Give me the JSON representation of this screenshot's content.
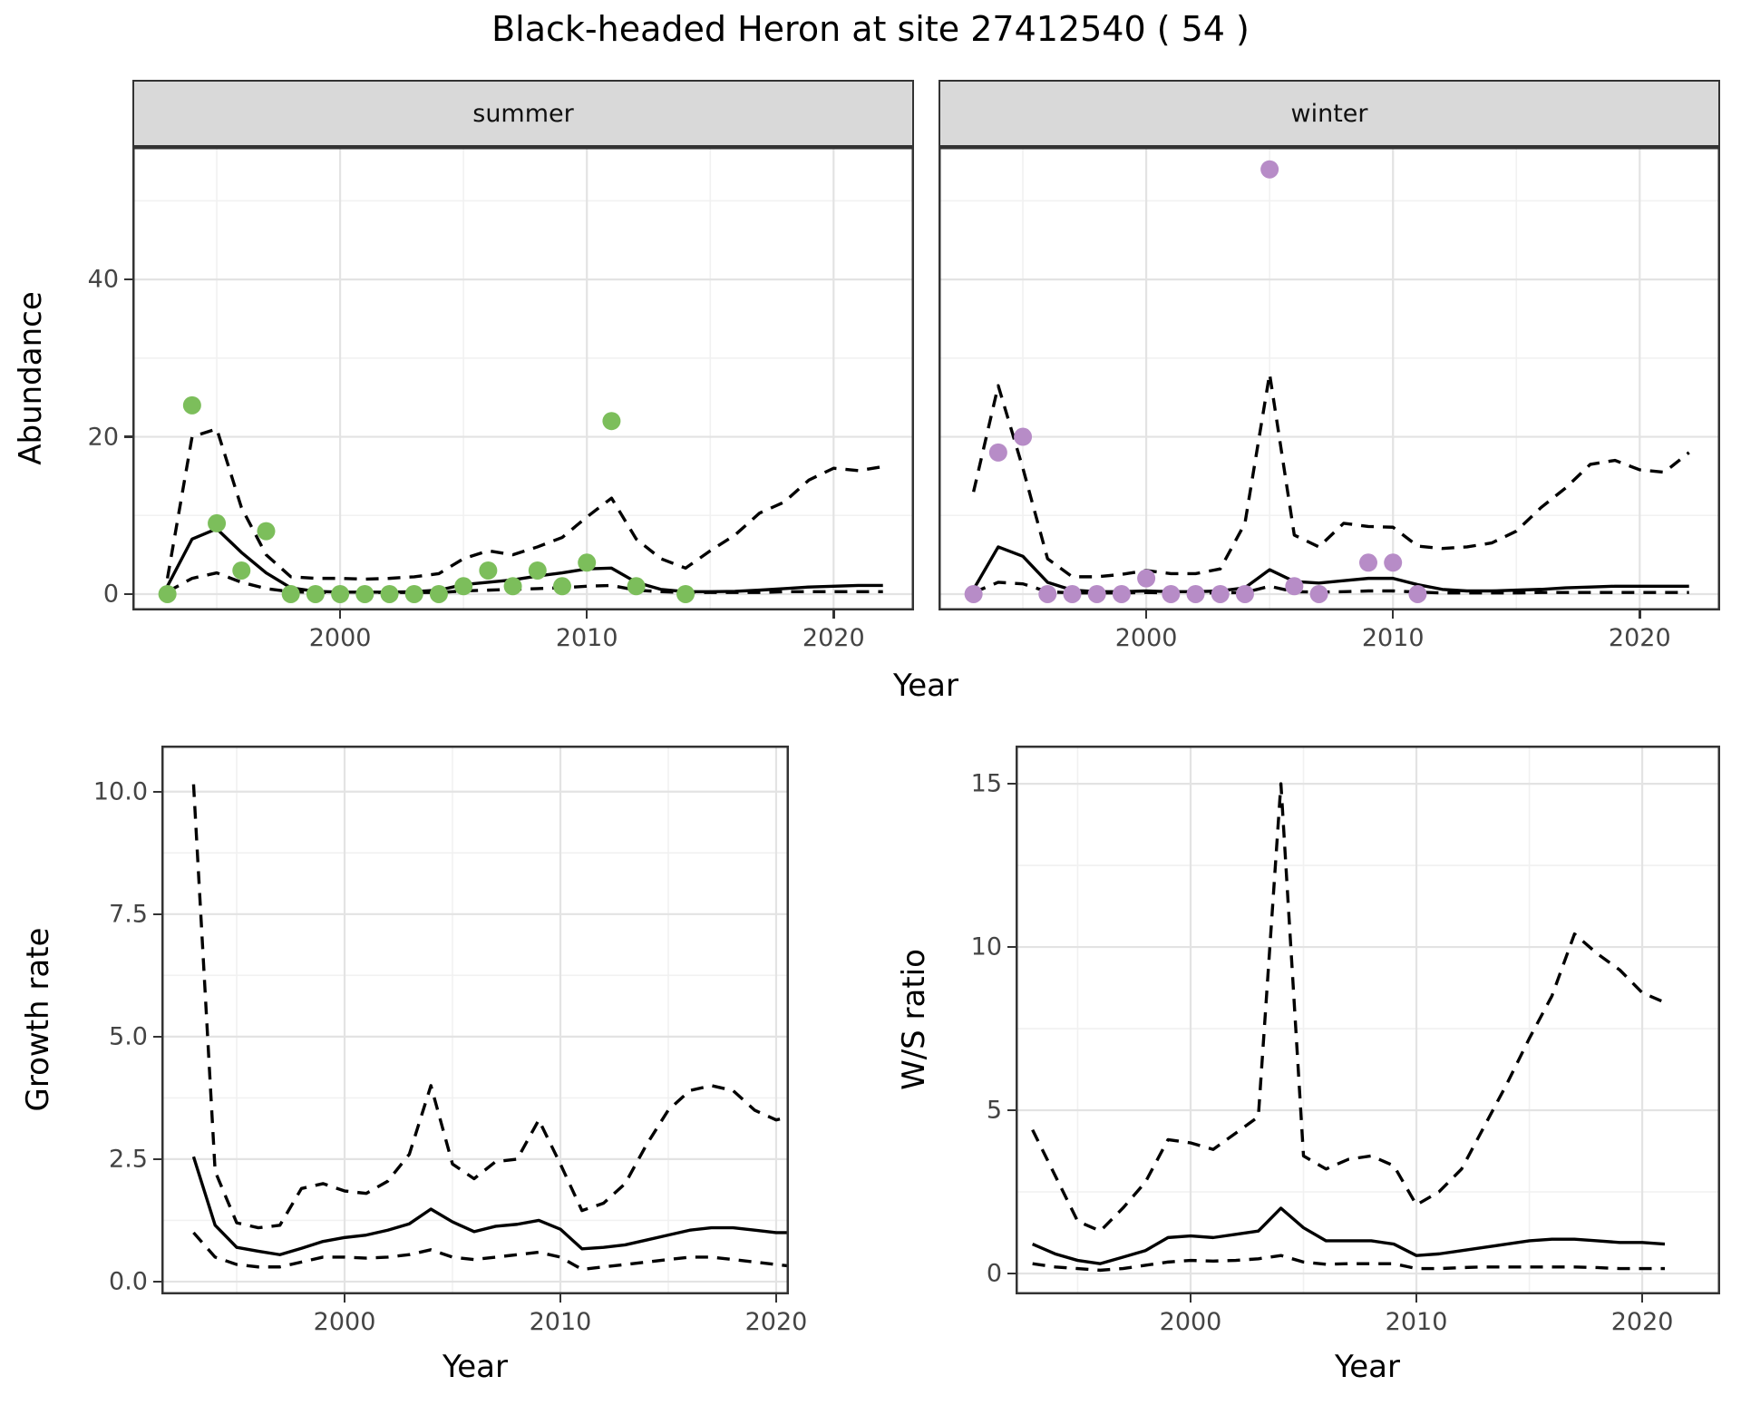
{
  "title": "Black-headed Heron at site 27412540 ( 54 )",
  "facets": [
    {
      "label": "summer"
    },
    {
      "label": "winter"
    }
  ],
  "axis_titles": {
    "top_x": "Year",
    "top_y": "Abundance",
    "bottom_left_x": "Year",
    "bottom_left_y": "Growth rate",
    "bottom_right_x": "Year",
    "bottom_right_y": "W/S ratio"
  },
  "colors": {
    "summer_point": "#7CBE5B",
    "winter_point": "#B78CC7",
    "line": "#000000",
    "grid_major": "#E3E3E3",
    "grid_minor": "#F1F1F1",
    "panel_border": "#333333",
    "strip_fill": "#D9D9D9",
    "tick_text": "#444444"
  },
  "chart_data": [
    {
      "id": "abundance-summer",
      "type": "line",
      "title": "summer",
      "xlabel": "Year",
      "ylabel": "Abundance",
      "x_domain": [
        1991.58,
        2023.26
      ],
      "y_domain": [
        -2.08,
        56.85
      ],
      "x_ticks": [
        2000,
        2010,
        2020
      ],
      "x_tick_labels": [
        "2000",
        "2010",
        "2020"
      ],
      "x_minor": [
        1995,
        2005,
        2015
      ],
      "y_ticks": [
        0,
        20,
        40
      ],
      "y_tick_labels": [
        "0",
        "20",
        "40"
      ],
      "y_minor": [
        10,
        30,
        50
      ],
      "series_x": [
        1993,
        1994,
        1995,
        1996,
        1997,
        1998,
        1999,
        2000,
        2001,
        2002,
        2003,
        2004,
        2005,
        2006,
        2007,
        2008,
        2009,
        2010,
        2011,
        2012,
        2013,
        2014,
        2015,
        2016,
        2017,
        2018,
        2019,
        2020,
        2021,
        2022
      ],
      "series": [
        {
          "name": "lower-ci",
          "style": "dashed",
          "y": [
            0.3,
            2.0,
            2.7,
            1.5,
            0.7,
            0.3,
            0.2,
            0.2,
            0.2,
            0.2,
            0.2,
            0.2,
            0.4,
            0.5,
            0.6,
            0.7,
            0.8,
            1.0,
            1.1,
            0.5,
            0.3,
            0.2,
            0.2,
            0.2,
            0.2,
            0.3,
            0.3,
            0.3,
            0.3,
            0.3
          ]
        },
        {
          "name": "upper-ci",
          "style": "dashed",
          "y": [
            2.0,
            20,
            21,
            11,
            5,
            2.2,
            2.0,
            2.0,
            1.9,
            2.0,
            2.2,
            2.6,
            4.5,
            5.5,
            5.0,
            6.0,
            7.2,
            9.8,
            12.2,
            7.0,
            4.5,
            3.3,
            5.5,
            7.5,
            10.3,
            11.7,
            14.5,
            16.0,
            15.7,
            16.2
          ]
        },
        {
          "name": "mean",
          "style": "solid",
          "y": [
            1.0,
            7.0,
            8.3,
            5.3,
            2.7,
            0.8,
            0.35,
            0.25,
            0.25,
            0.25,
            0.3,
            0.5,
            1.2,
            1.5,
            1.8,
            2.3,
            2.7,
            3.2,
            3.3,
            1.5,
            0.6,
            0.3,
            0.3,
            0.35,
            0.5,
            0.7,
            0.9,
            1.0,
            1.1,
            1.1
          ]
        }
      ],
      "points": {
        "color": "#7CBE5B",
        "x": [
          1993,
          1994,
          1995,
          1996,
          1997,
          1998,
          1999,
          2000,
          2001,
          2002,
          2003,
          2004,
          2005,
          2006,
          2007,
          2008,
          2009,
          2010,
          2011,
          2012,
          2014
        ],
        "y": [
          0,
          24,
          9,
          3,
          8,
          0,
          0,
          0,
          0,
          0,
          0,
          0,
          1,
          3,
          1,
          3,
          1,
          4,
          22,
          1,
          0
        ]
      }
    },
    {
      "id": "abundance-winter",
      "type": "line",
      "title": "winter",
      "xlabel": "Year",
      "ylabel": "Abundance",
      "x_domain": [
        1991.58,
        2023.26
      ],
      "y_domain": [
        -2.08,
        56.85
      ],
      "x_ticks": [
        2000,
        2010,
        2020
      ],
      "x_tick_labels": [
        "2000",
        "2010",
        "2020"
      ],
      "x_minor": [
        1995,
        2005,
        2015
      ],
      "y_ticks": [
        0,
        20,
        40
      ],
      "y_tick_labels": null,
      "y_minor": [
        10,
        30,
        50
      ],
      "series_x": [
        1993,
        1994,
        1995,
        1996,
        1997,
        1998,
        1999,
        2000,
        2001,
        2002,
        2003,
        2004,
        2005,
        2006,
        2007,
        2008,
        2009,
        2010,
        2011,
        2012,
        2013,
        2014,
        2015,
        2016,
        2017,
        2018,
        2019,
        2020,
        2021,
        2022
      ],
      "series": [
        {
          "name": "lower-ci",
          "style": "dashed",
          "y": [
            0.2,
            1.5,
            1.3,
            0.3,
            0.15,
            0.15,
            0.15,
            0.2,
            0.15,
            0.15,
            0.15,
            0.2,
            1.0,
            0.3,
            0.25,
            0.3,
            0.4,
            0.4,
            0.25,
            0.15,
            0.15,
            0.15,
            0.15,
            0.2,
            0.2,
            0.2,
            0.2,
            0.2,
            0.2,
            0.2
          ]
        },
        {
          "name": "upper-ci",
          "style": "dashed",
          "y": [
            13,
            26.5,
            16,
            4.5,
            2.2,
            2.2,
            2.5,
            3.0,
            2.6,
            2.6,
            3.2,
            9.0,
            28,
            7.5,
            6.0,
            9.0,
            8.6,
            8.5,
            6.1,
            5.8,
            6.0,
            6.5,
            8.0,
            11.0,
            13.5,
            16.5,
            17.0,
            15.8,
            15.5,
            18.0
          ]
        },
        {
          "name": "mean",
          "style": "solid",
          "y": [
            0.6,
            6.0,
            4.8,
            1.5,
            0.5,
            0.3,
            0.3,
            0.4,
            0.3,
            0.3,
            0.4,
            0.8,
            3.1,
            1.6,
            1.4,
            1.7,
            2.0,
            2.0,
            1.2,
            0.6,
            0.4,
            0.4,
            0.5,
            0.6,
            0.8,
            0.9,
            1.0,
            1.0,
            1.0,
            1.0
          ]
        }
      ],
      "points": {
        "color": "#B78CC7",
        "x": [
          1993,
          1994,
          1995,
          1996,
          1997,
          1998,
          1999,
          2000,
          2001,
          2002,
          2003,
          2004,
          2005,
          2006,
          2007,
          2009,
          2010,
          2011
        ],
        "y": [
          0,
          18,
          20,
          0,
          0,
          0,
          0,
          2,
          0,
          0,
          0,
          0,
          54,
          1,
          0,
          4,
          4,
          0
        ]
      }
    },
    {
      "id": "growth-rate",
      "type": "line",
      "title": "Growth rate",
      "xlabel": "Year",
      "ylabel": "Growth rate",
      "x_domain": [
        1991.51,
        2020.59
      ],
      "y_domain": [
        -0.26,
        10.94
      ],
      "x_ticks": [
        2000,
        2010,
        2020
      ],
      "x_tick_labels": [
        "2000",
        "2010",
        "2020"
      ],
      "x_minor": [
        1995,
        2005,
        2015
      ],
      "y_ticks": [
        0,
        2.5,
        5,
        7.5,
        10
      ],
      "y_tick_labels": [
        "0.0",
        "2.5",
        "5.0",
        "7.5",
        "10.0"
      ],
      "y_minor": [
        1.25,
        3.75,
        6.25,
        8.75
      ],
      "series_x": [
        1993,
        1994,
        1995,
        1996,
        1997,
        1998,
        1999,
        2000,
        2001,
        2002,
        2003,
        2004,
        2005,
        2006,
        2007,
        2008,
        2009,
        2010,
        2011,
        2012,
        2013,
        2014,
        2015,
        2016,
        2017,
        2018,
        2019,
        2020,
        2021
      ],
      "series": [
        {
          "name": "lower-ci",
          "style": "dashed",
          "y": [
            1.0,
            0.5,
            0.35,
            0.3,
            0.3,
            0.4,
            0.5,
            0.5,
            0.48,
            0.5,
            0.55,
            0.65,
            0.5,
            0.45,
            0.5,
            0.55,
            0.6,
            0.5,
            0.25,
            0.3,
            0.35,
            0.4,
            0.45,
            0.5,
            0.5,
            0.45,
            0.4,
            0.35,
            0.3
          ]
        },
        {
          "name": "upper-ci",
          "style": "dashed",
          "y": [
            10.15,
            2.25,
            1.2,
            1.1,
            1.15,
            1.9,
            2.0,
            1.85,
            1.8,
            2.05,
            2.6,
            4.0,
            2.4,
            2.1,
            2.45,
            2.5,
            3.3,
            2.4,
            1.45,
            1.6,
            2.0,
            2.8,
            3.5,
            3.9,
            4.0,
            3.9,
            3.5,
            3.3,
            3.4
          ]
        },
        {
          "name": "mean",
          "style": "solid",
          "y": [
            2.55,
            1.15,
            0.7,
            0.62,
            0.55,
            0.68,
            0.82,
            0.9,
            0.95,
            1.05,
            1.18,
            1.48,
            1.22,
            1.02,
            1.13,
            1.17,
            1.25,
            1.07,
            0.67,
            0.7,
            0.75,
            0.85,
            0.95,
            1.05,
            1.1,
            1.1,
            1.05,
            1.0,
            1.0
          ]
        }
      ],
      "points": null
    },
    {
      "id": "ws-ratio",
      "type": "line",
      "title": "W/S ratio",
      "xlabel": "Year",
      "ylabel": "W/S ratio",
      "x_domain": [
        1992.25,
        2023.45
      ],
      "y_domain": [
        -0.64,
        16.17
      ],
      "x_ticks": [
        2000,
        2010,
        2020
      ],
      "x_tick_labels": [
        "2000",
        "2010",
        "2020"
      ],
      "x_minor": [
        1995,
        2005,
        2015
      ],
      "y_ticks": [
        0,
        5,
        10,
        15
      ],
      "y_tick_labels": [
        "0",
        "5",
        "10",
        "15"
      ],
      "y_minor": [
        2.5,
        7.5,
        12.5
      ],
      "series_x": [
        1993,
        1994,
        1995,
        1996,
        1997,
        1998,
        1999,
        2000,
        2001,
        2002,
        2003,
        2004,
        2005,
        2006,
        2007,
        2008,
        2009,
        2010,
        2011,
        2012,
        2013,
        2014,
        2015,
        2016,
        2017,
        2018,
        2019,
        2020,
        2021
      ],
      "series": [
        {
          "name": "lower-ci",
          "style": "dashed",
          "y": [
            0.3,
            0.2,
            0.15,
            0.1,
            0.15,
            0.25,
            0.35,
            0.4,
            0.38,
            0.4,
            0.45,
            0.55,
            0.35,
            0.28,
            0.3,
            0.3,
            0.3,
            0.15,
            0.15,
            0.18,
            0.2,
            0.2,
            0.2,
            0.2,
            0.2,
            0.18,
            0.15,
            0.15,
            0.15
          ]
        },
        {
          "name": "upper-ci",
          "style": "dashed",
          "y": [
            4.4,
            3.0,
            1.6,
            1.3,
            2.0,
            2.8,
            4.1,
            4.0,
            3.8,
            4.3,
            4.8,
            15.0,
            3.6,
            3.2,
            3.5,
            3.6,
            3.3,
            2.1,
            2.5,
            3.2,
            4.5,
            5.8,
            7.2,
            8.5,
            10.4,
            9.8,
            9.3,
            8.6,
            8.3
          ]
        },
        {
          "name": "mean",
          "style": "solid",
          "y": [
            0.9,
            0.6,
            0.4,
            0.3,
            0.5,
            0.7,
            1.1,
            1.15,
            1.1,
            1.2,
            1.3,
            2.0,
            1.4,
            1.0,
            1.0,
            1.0,
            0.9,
            0.55,
            0.6,
            0.7,
            0.8,
            0.9,
            1.0,
            1.05,
            1.05,
            1.0,
            0.95,
            0.95,
            0.9
          ]
        }
      ],
      "points": null
    }
  ]
}
